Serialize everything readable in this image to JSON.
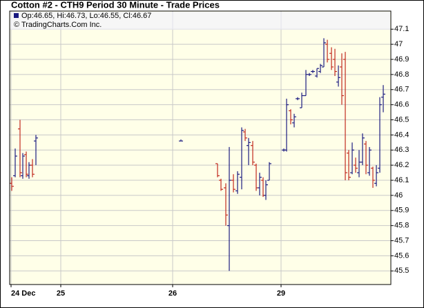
{
  "chart_data": {
    "type": "ohlc",
    "title": "Cotton #2 - CTH9 Period 30 Minute - Trade Prices",
    "legend": "Op:46.65, Hi:46.73, Lo:46.55, Cl:46.67",
    "copyright": "© TradingCharts.Com Inc.",
    "legend_color": "#1a1a80",
    "up_color": "#1a1a80",
    "down_color": "#c0281e",
    "background": "#ffffe8",
    "grid": true,
    "x": [
      3,
      8,
      15,
      19,
      24,
      28,
      33,
      38,
      248,
      301,
      306,
      313,
      318,
      324,
      330,
      336,
      341,
      346,
      352,
      357,
      362,
      367,
      371,
      376,
      397,
      401,
      407,
      412,
      417,
      423,
      429,
      434,
      439,
      445,
      450,
      455,
      460,
      466,
      471,
      476,
      481,
      486,
      491,
      496,
      501,
      506,
      511,
      516,
      521,
      526,
      531,
      536,
      541
    ],
    "open": [
      46.08,
      46.13,
      46.44,
      46.13,
      46.27,
      46.13,
      46.2,
      46.36,
      46.36,
      46.21,
      46.1,
      46.05,
      45.8,
      46.1,
      46.03,
      46.12,
      46.42,
      46.33,
      46.33,
      46.2,
      46.05,
      46.1,
      46.0,
      46.1,
      46.3,
      46.3,
      46.56,
      46.48,
      46.64,
      46.58,
      46.66,
      46.8,
      46.82,
      46.79,
      46.82,
      46.85,
      47.0,
      46.94,
      46.9,
      46.75,
      46.85,
      46.9,
      46.28,
      46.15,
      46.2,
      46.15,
      46.22,
      46.34,
      46.15,
      46.18,
      46.08,
      46.18,
      46.65
    ],
    "high": [
      46.12,
      46.31,
      46.5,
      46.28,
      46.29,
      46.22,
      46.24,
      46.4,
      46.37,
      46.21,
      46.11,
      46.08,
      46.32,
      46.14,
      46.16,
      46.45,
      46.44,
      46.38,
      46.36,
      46.21,
      46.15,
      46.12,
      46.1,
      46.22,
      46.31,
      46.64,
      46.57,
      46.54,
      46.65,
      46.68,
      46.83,
      46.81,
      46.83,
      46.84,
      46.87,
      47.04,
      47.03,
      46.98,
      46.97,
      46.86,
      46.94,
      46.95,
      46.3,
      46.35,
      46.25,
      46.3,
      46.41,
      46.36,
      46.32,
      46.19,
      46.2,
      46.65,
      46.73
    ],
    "low": [
      46.03,
      46.12,
      46.12,
      46.11,
      46.12,
      46.11,
      46.12,
      46.2,
      46.36,
      46.12,
      46.03,
      45.8,
      45.5,
      46.02,
      46.01,
      46.04,
      46.36,
      46.2,
      46.2,
      46.03,
      46.0,
      45.99,
      45.97,
      46.1,
      46.29,
      46.29,
      46.47,
      46.45,
      46.63,
      46.58,
      46.66,
      46.79,
      46.81,
      46.78,
      46.81,
      46.85,
      46.88,
      46.83,
      46.79,
      46.72,
      46.6,
      46.1,
      46.1,
      46.14,
      46.15,
      46.12,
      46.2,
      46.14,
      46.13,
      46.05,
      46.06,
      46.15,
      46.55
    ],
    "close": [
      46.06,
      46.26,
      46.15,
      46.26,
      46.14,
      46.2,
      46.14,
      46.38,
      46.36,
      46.13,
      46.04,
      45.87,
      46.1,
      46.04,
      46.14,
      46.43,
      46.38,
      46.35,
      46.22,
      46.05,
      46.12,
      46.0,
      46.07,
      46.21,
      46.3,
      46.6,
      46.5,
      46.52,
      46.64,
      46.66,
      46.8,
      46.8,
      46.82,
      46.84,
      46.86,
      47.01,
      46.9,
      46.85,
      46.82,
      46.78,
      46.66,
      46.15,
      46.12,
      46.3,
      46.18,
      46.22,
      46.38,
      46.2,
      46.3,
      46.1,
      46.15,
      46.6,
      46.67
    ],
    "xlim": [
      0,
      552
    ],
    "xticks": [
      {
        "value": 2,
        "label": "24 Dec"
      },
      {
        "value": 74,
        "label": "25"
      },
      {
        "value": 236,
        "label": "26"
      },
      {
        "value": 393,
        "label": "29"
      }
    ],
    "ylim": [
      45.41,
      47.22
    ],
    "yticks": [
      45.5,
      45.6,
      45.7,
      45.8,
      45.9,
      46,
      46.1,
      46.2,
      46.3,
      46.4,
      46.5,
      46.6,
      46.7,
      46.8,
      46.9,
      47,
      47.1
    ]
  }
}
